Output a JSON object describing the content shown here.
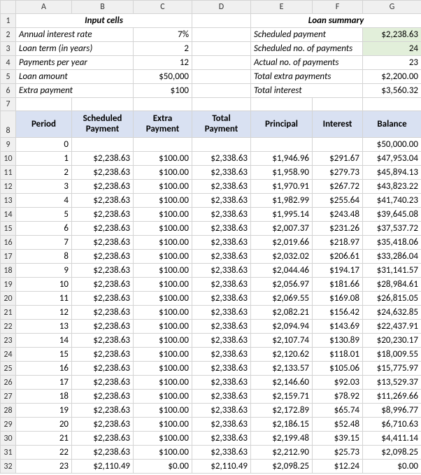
{
  "columns": [
    "A",
    "B",
    "C",
    "D",
    "E",
    "F",
    "G"
  ],
  "col_widths": {
    "rowhdr": 22,
    "A": 80,
    "B": 88,
    "C": 84,
    "D": 84,
    "E": 88,
    "F": 72,
    "G": 84
  },
  "section_titles": {
    "input": "Input cells",
    "summary": "Loan summary"
  },
  "inputs": [
    {
      "label": "Annual interest rate",
      "value": "7%"
    },
    {
      "label": "Loan term (in years)",
      "value": "2"
    },
    {
      "label": "Payments per year",
      "value": "12"
    },
    {
      "label": "Loan amount",
      "value": "$50,000"
    },
    {
      "label": "Extra payment",
      "value": "$100"
    }
  ],
  "summary": [
    {
      "label": "Scheduled payment",
      "value": "$2,238.63",
      "green": true
    },
    {
      "label": "Scheduled no. of payments",
      "value": "24",
      "green": true
    },
    {
      "label": "Actual no. of payments",
      "value": "23"
    },
    {
      "label": "Total extra payments",
      "value": "$2,200.00"
    },
    {
      "label": "Total interest",
      "value": "$3,560.32"
    }
  ],
  "table_headers": [
    "Period",
    "Scheduled Payment",
    "Extra Payment",
    "Total Payment",
    "Principal",
    "Interest",
    "Balance"
  ],
  "rows": [
    {
      "n": 9,
      "period": "0",
      "sched": "",
      "extra": "",
      "total": "",
      "prin": "",
      "int": "",
      "bal": "$50,000.00"
    },
    {
      "n": 10,
      "period": "1",
      "sched": "$2,238.63",
      "extra": "$100.00",
      "total": "$2,338.63",
      "prin": "$1,946.96",
      "int": "$291.67",
      "bal": "$47,953.04"
    },
    {
      "n": 11,
      "period": "2",
      "sched": "$2,238.63",
      "extra": "$100.00",
      "total": "$2,338.63",
      "prin": "$1,958.90",
      "int": "$279.73",
      "bal": "$45,894.13"
    },
    {
      "n": 12,
      "period": "3",
      "sched": "$2,238.63",
      "extra": "$100.00",
      "total": "$2,338.63",
      "prin": "$1,970.91",
      "int": "$267.72",
      "bal": "$43,823.22"
    },
    {
      "n": 13,
      "period": "4",
      "sched": "$2,238.63",
      "extra": "$100.00",
      "total": "$2,338.63",
      "prin": "$1,982.99",
      "int": "$255.64",
      "bal": "$41,740.23"
    },
    {
      "n": 14,
      "period": "5",
      "sched": "$2,238.63",
      "extra": "$100.00",
      "total": "$2,338.63",
      "prin": "$1,995.14",
      "int": "$243.48",
      "bal": "$39,645.08"
    },
    {
      "n": 15,
      "period": "6",
      "sched": "$2,238.63",
      "extra": "$100.00",
      "total": "$2,338.63",
      "prin": "$2,007.37",
      "int": "$231.26",
      "bal": "$37,537.72"
    },
    {
      "n": 16,
      "period": "7",
      "sched": "$2,238.63",
      "extra": "$100.00",
      "total": "$2,338.63",
      "prin": "$2,019.66",
      "int": "$218.97",
      "bal": "$35,418.06"
    },
    {
      "n": 17,
      "period": "8",
      "sched": "$2,238.63",
      "extra": "$100.00",
      "total": "$2,338.63",
      "prin": "$2,032.02",
      "int": "$206.61",
      "bal": "$33,286.04"
    },
    {
      "n": 18,
      "period": "9",
      "sched": "$2,238.63",
      "extra": "$100.00",
      "total": "$2,338.63",
      "prin": "$2,044.46",
      "int": "$194.17",
      "bal": "$31,141.57"
    },
    {
      "n": 19,
      "period": "10",
      "sched": "$2,238.63",
      "extra": "$100.00",
      "total": "$2,338.63",
      "prin": "$2,056.97",
      "int": "$181.66",
      "bal": "$28,984.61"
    },
    {
      "n": 20,
      "period": "11",
      "sched": "$2,238.63",
      "extra": "$100.00",
      "total": "$2,338.63",
      "prin": "$2,069.55",
      "int": "$169.08",
      "bal": "$26,815.05"
    },
    {
      "n": 21,
      "period": "12",
      "sched": "$2,238.63",
      "extra": "$100.00",
      "total": "$2,338.63",
      "prin": "$2,082.21",
      "int": "$156.42",
      "bal": "$24,632.85"
    },
    {
      "n": 22,
      "period": "13",
      "sched": "$2,238.63",
      "extra": "$100.00",
      "total": "$2,338.63",
      "prin": "$2,094.94",
      "int": "$143.69",
      "bal": "$22,437.91"
    },
    {
      "n": 23,
      "period": "14",
      "sched": "$2,238.63",
      "extra": "$100.00",
      "total": "$2,338.63",
      "prin": "$2,107.74",
      "int": "$130.89",
      "bal": "$20,230.17"
    },
    {
      "n": 24,
      "period": "15",
      "sched": "$2,238.63",
      "extra": "$100.00",
      "total": "$2,338.63",
      "prin": "$2,120.62",
      "int": "$118.01",
      "bal": "$18,009.55"
    },
    {
      "n": 25,
      "period": "16",
      "sched": "$2,238.63",
      "extra": "$100.00",
      "total": "$2,338.63",
      "prin": "$2,133.57",
      "int": "$105.06",
      "bal": "$15,775.97"
    },
    {
      "n": 26,
      "period": "17",
      "sched": "$2,238.63",
      "extra": "$100.00",
      "total": "$2,338.63",
      "prin": "$2,146.60",
      "int": "$92.03",
      "bal": "$13,529.37"
    },
    {
      "n": 27,
      "period": "18",
      "sched": "$2,238.63",
      "extra": "$100.00",
      "total": "$2,338.63",
      "prin": "$2,159.71",
      "int": "$78.92",
      "bal": "$11,269.66"
    },
    {
      "n": 28,
      "period": "19",
      "sched": "$2,238.63",
      "extra": "$100.00",
      "total": "$2,338.63",
      "prin": "$2,172.89",
      "int": "$65.74",
      "bal": "$8,996.77"
    },
    {
      "n": 29,
      "period": "20",
      "sched": "$2,238.63",
      "extra": "$100.00",
      "total": "$2,338.63",
      "prin": "$2,186.15",
      "int": "$52.48",
      "bal": "$6,710.63"
    },
    {
      "n": 30,
      "period": "21",
      "sched": "$2,238.63",
      "extra": "$100.00",
      "total": "$2,338.63",
      "prin": "$2,199.48",
      "int": "$39.15",
      "bal": "$4,411.14"
    },
    {
      "n": 31,
      "period": "22",
      "sched": "$2,238.63",
      "extra": "$100.00",
      "total": "$2,338.63",
      "prin": "$2,212.90",
      "int": "$25.73",
      "bal": "$2,098.25"
    },
    {
      "n": 32,
      "period": "23",
      "sched": "$2,110.49",
      "extra": "$0.00",
      "total": "$2,110.49",
      "prin": "$2,098.25",
      "int": "$12.24",
      "bal": "$0.00"
    }
  ],
  "colors": {
    "grid": "#d4d4d4",
    "header_bg": "#f0f0f0",
    "green_bg": "#e2efda",
    "blue_bg": "#d9e1f2",
    "text": "#000000"
  }
}
